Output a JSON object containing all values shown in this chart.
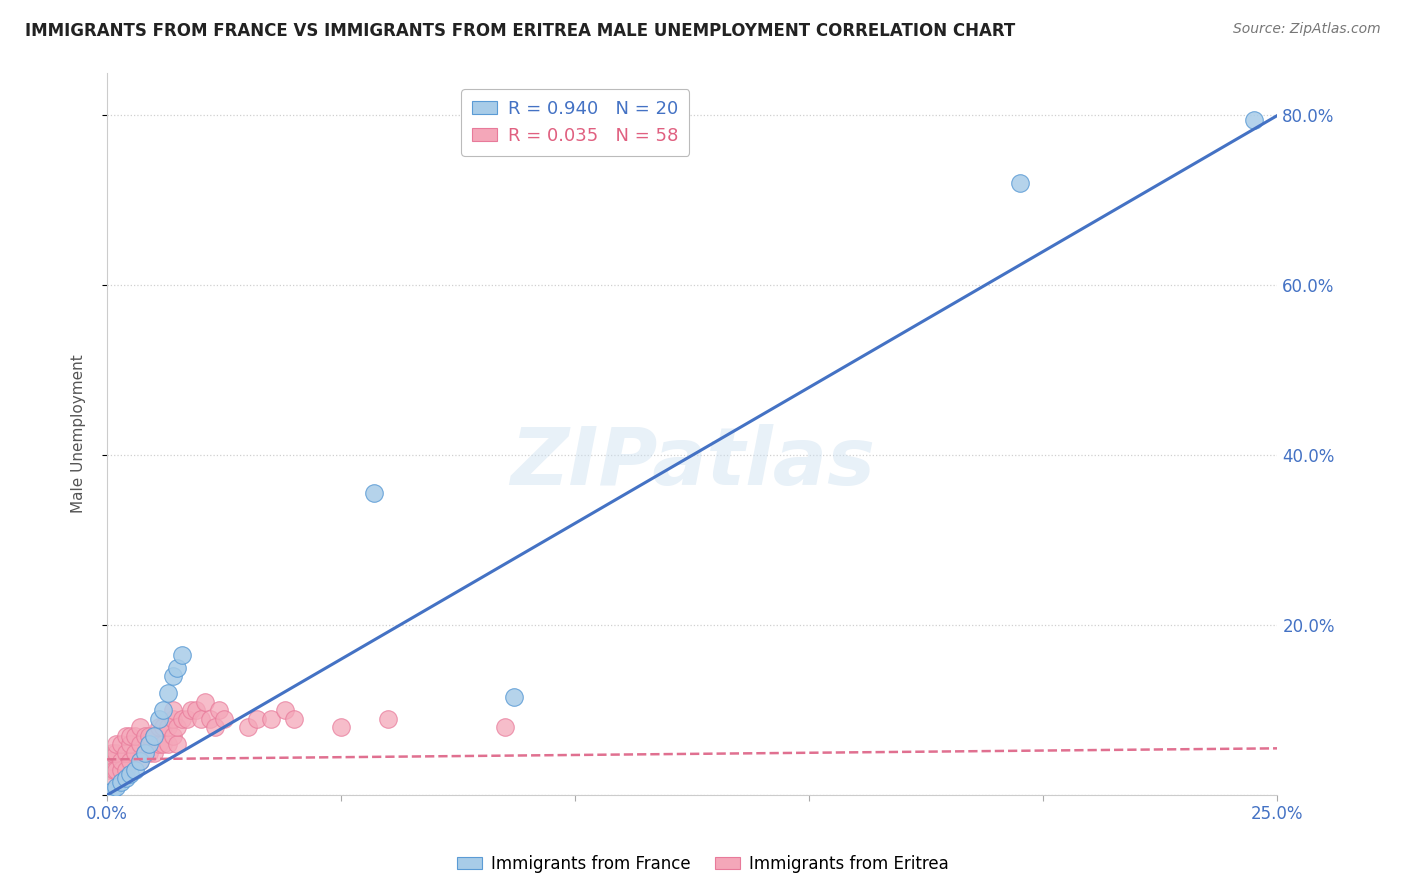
{
  "title": "IMMIGRANTS FROM FRANCE VS IMMIGRANTS FROM ERITREA MALE UNEMPLOYMENT CORRELATION CHART",
  "source": "Source: ZipAtlas.com",
  "ylabel": "Male Unemployment",
  "xlim": [
    0.0,
    0.25
  ],
  "ylim": [
    0.0,
    0.85
  ],
  "xticks": [
    0.0,
    0.05,
    0.1,
    0.15,
    0.2,
    0.25
  ],
  "xtick_labels": [
    "0.0%",
    "",
    "",
    "",
    "",
    "25.0%"
  ],
  "yticks": [
    0.0,
    0.2,
    0.4,
    0.6,
    0.8
  ],
  "ytick_labels": [
    "",
    "20.0%",
    "40.0%",
    "60.0%",
    "80.0%"
  ],
  "france_color": "#a8cce8",
  "france_edge_color": "#5b9bd5",
  "eritrea_color": "#f4a7b9",
  "eritrea_edge_color": "#e87a9a",
  "france_R": 0.94,
  "france_N": 20,
  "eritrea_R": 0.035,
  "eritrea_N": 58,
  "france_legend": "Immigrants from France",
  "eritrea_legend": "Immigrants from Eritrea",
  "watermark": "ZIPatlas",
  "background_color": "#ffffff",
  "grid_color": "#d0d0d0",
  "france_scatter_x": [
    0.001,
    0.002,
    0.003,
    0.004,
    0.005,
    0.006,
    0.007,
    0.008,
    0.009,
    0.01,
    0.011,
    0.012,
    0.013,
    0.014,
    0.015,
    0.016,
    0.057,
    0.087,
    0.195,
    0.245
  ],
  "france_scatter_y": [
    0.005,
    0.01,
    0.015,
    0.02,
    0.025,
    0.03,
    0.04,
    0.05,
    0.06,
    0.07,
    0.09,
    0.1,
    0.12,
    0.14,
    0.15,
    0.165,
    0.355,
    0.115,
    0.72,
    0.795
  ],
  "eritrea_scatter_x": [
    0.0003,
    0.0005,
    0.001,
    0.001,
    0.001,
    0.0015,
    0.002,
    0.002,
    0.002,
    0.003,
    0.003,
    0.003,
    0.004,
    0.004,
    0.004,
    0.005,
    0.005,
    0.005,
    0.006,
    0.006,
    0.007,
    0.007,
    0.007,
    0.008,
    0.008,
    0.009,
    0.009,
    0.01,
    0.01,
    0.011,
    0.011,
    0.012,
    0.012,
    0.013,
    0.013,
    0.014,
    0.014,
    0.014,
    0.015,
    0.015,
    0.016,
    0.017,
    0.018,
    0.019,
    0.02,
    0.021,
    0.022,
    0.023,
    0.024,
    0.025,
    0.03,
    0.032,
    0.035,
    0.038,
    0.04,
    0.05,
    0.06,
    0.085
  ],
  "eritrea_scatter_y": [
    0.03,
    0.04,
    0.02,
    0.04,
    0.05,
    0.03,
    0.03,
    0.05,
    0.06,
    0.03,
    0.04,
    0.06,
    0.03,
    0.05,
    0.07,
    0.04,
    0.06,
    0.07,
    0.05,
    0.07,
    0.04,
    0.06,
    0.08,
    0.05,
    0.07,
    0.05,
    0.07,
    0.05,
    0.07,
    0.06,
    0.08,
    0.06,
    0.08,
    0.06,
    0.08,
    0.07,
    0.09,
    0.1,
    0.06,
    0.08,
    0.09,
    0.09,
    0.1,
    0.1,
    0.09,
    0.11,
    0.09,
    0.08,
    0.1,
    0.09,
    0.08,
    0.09,
    0.09,
    0.1,
    0.09,
    0.08,
    0.09,
    0.08
  ],
  "france_trend_x": [
    0.0,
    0.25
  ],
  "france_trend_y": [
    0.0,
    0.8
  ],
  "eritrea_trend_x": [
    0.0,
    0.25
  ],
  "eritrea_trend_y": [
    0.042,
    0.055
  ],
  "axis_color": "#4472c4",
  "trend_blue": "#4472c4",
  "trend_pink": "#e07090"
}
